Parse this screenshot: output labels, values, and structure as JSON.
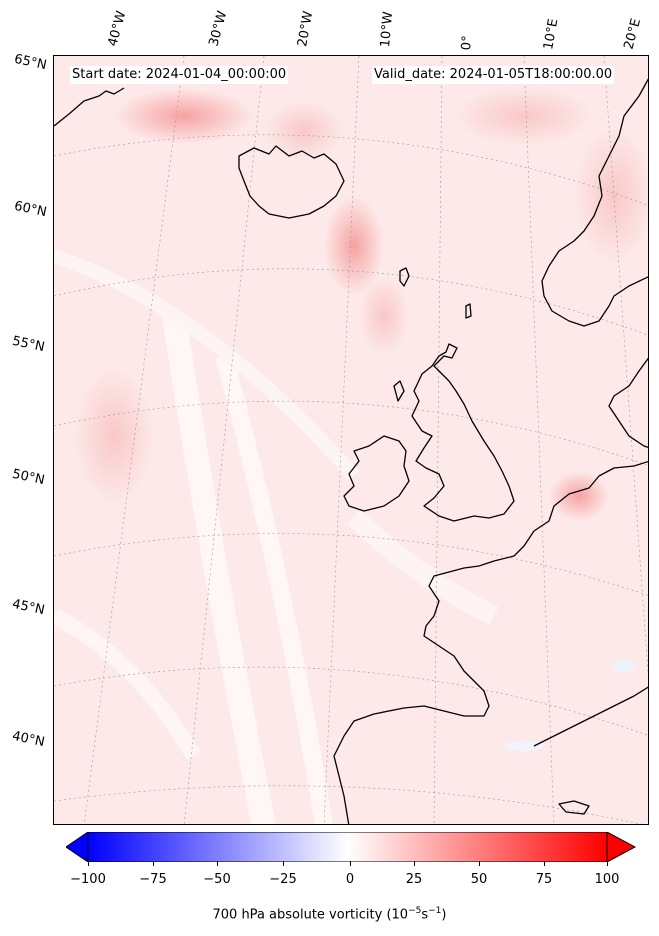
{
  "header": {
    "start_date": "Start date: 2024-01-04_00:00:00",
    "valid_date": "Valid_date: 2024-01-05T18:00:00.00"
  },
  "longitude_labels": [
    "40°W",
    "30°W",
    "20°W",
    "10°W",
    "0°",
    "10°E",
    "20°E"
  ],
  "latitude_labels": [
    "65°N",
    "60°N",
    "55°N",
    "50°N",
    "45°N",
    "40°N"
  ],
  "colorbar": {
    "ticks": [
      "−100",
      "−75",
      "−50",
      "−25",
      "0",
      "25",
      "50",
      "75",
      "100"
    ],
    "label_text": "700 hPa absolute vorticity (10",
    "label_exp1": "−5",
    "label_mid": "s",
    "label_exp2": "−1",
    "label_end": ")",
    "min_color": "#0000ff",
    "mid_color": "#ffffff",
    "max_color": "#ff0000",
    "extend": "both"
  },
  "map": {
    "background_color": "#fdeeee",
    "coastline_color": "#000000",
    "gridline_style": "dotted gray"
  }
}
